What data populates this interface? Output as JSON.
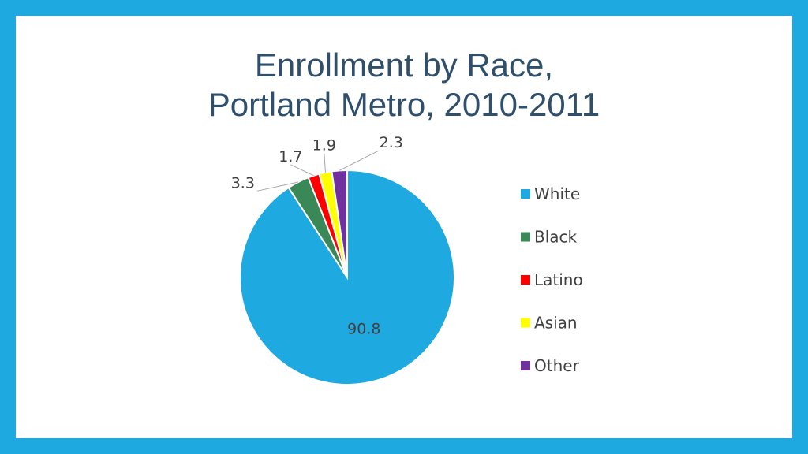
{
  "slide": {
    "title_line1": "Enrollment by Race,",
    "title_line2": "Portland Metro, 2010-2011",
    "frame_color": "#1fa9e1"
  },
  "chart_data": {
    "type": "pie",
    "title": "Enrollment by Race, Portland Metro, 2010-2011",
    "categories": [
      "White",
      "Black",
      "Latino",
      "Asian",
      "Other"
    ],
    "values": [
      90.8,
      3.3,
      1.7,
      1.9,
      2.3
    ],
    "colors": [
      "#1fa9e1",
      "#3a8757",
      "#ff0000",
      "#ffff00",
      "#7030a0"
    ],
    "data_labels": [
      "90.8",
      "3.3",
      "1.7",
      "1.9",
      "2.3"
    ],
    "legend_position": "right",
    "start_angle": "12 o'clock, clockwise"
  }
}
